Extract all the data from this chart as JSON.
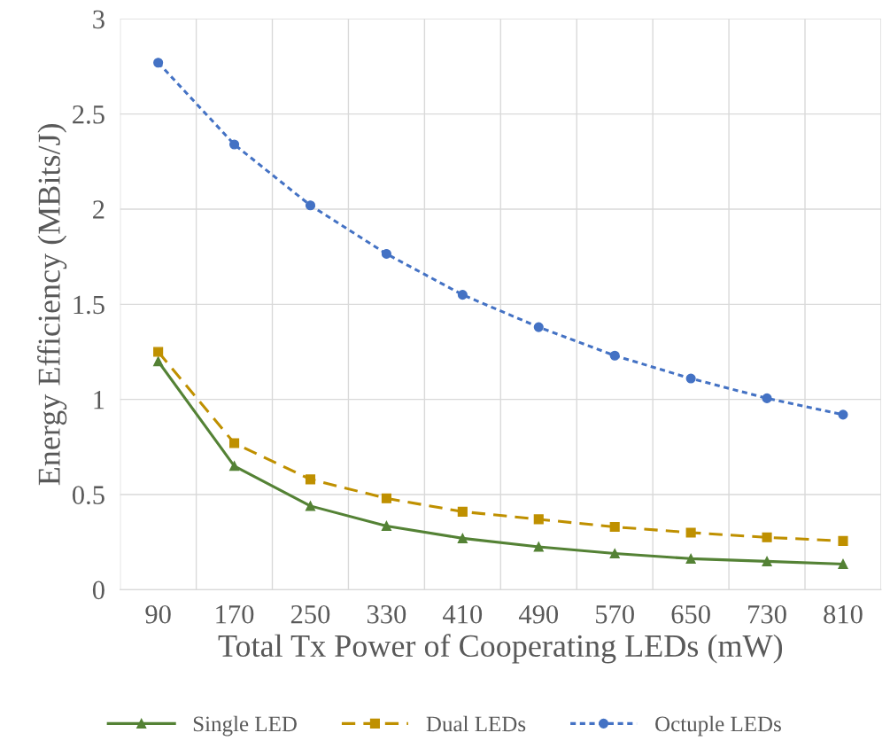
{
  "chart_data": {
    "type": "line",
    "xlabel": "Total Tx Power of Cooperating LEDs (mW)",
    "ylabel": "Energy Efficiency (MBits/J)",
    "categories": [
      "90",
      "170",
      "250",
      "330",
      "410",
      "490",
      "570",
      "650",
      "730",
      "810"
    ],
    "series": [
      {
        "name": "Single LED",
        "color": "#548235",
        "marker": "triangle",
        "line_style": "solid",
        "values": [
          1.2,
          0.65,
          0.44,
          0.335,
          0.27,
          0.225,
          0.19,
          0.163,
          0.149,
          0.135
        ]
      },
      {
        "name": "Dual LEDs",
        "color": "#bf9000",
        "marker": "square",
        "line_style": "dashed",
        "values": [
          1.25,
          0.77,
          0.58,
          0.48,
          0.41,
          0.37,
          0.33,
          0.3,
          0.275,
          0.256
        ]
      },
      {
        "name": "Octuple LEDs",
        "color": "#4472c4",
        "marker": "circle",
        "line_style": "dotted",
        "values": [
          2.77,
          2.34,
          2.02,
          1.765,
          1.55,
          1.38,
          1.23,
          1.11,
          1.006,
          0.92
        ]
      }
    ],
    "ylim": [
      0,
      3
    ],
    "yticks": [
      0,
      0.5,
      1,
      1.5,
      2,
      2.5,
      3
    ],
    "grid": true,
    "legend": "bottom"
  }
}
